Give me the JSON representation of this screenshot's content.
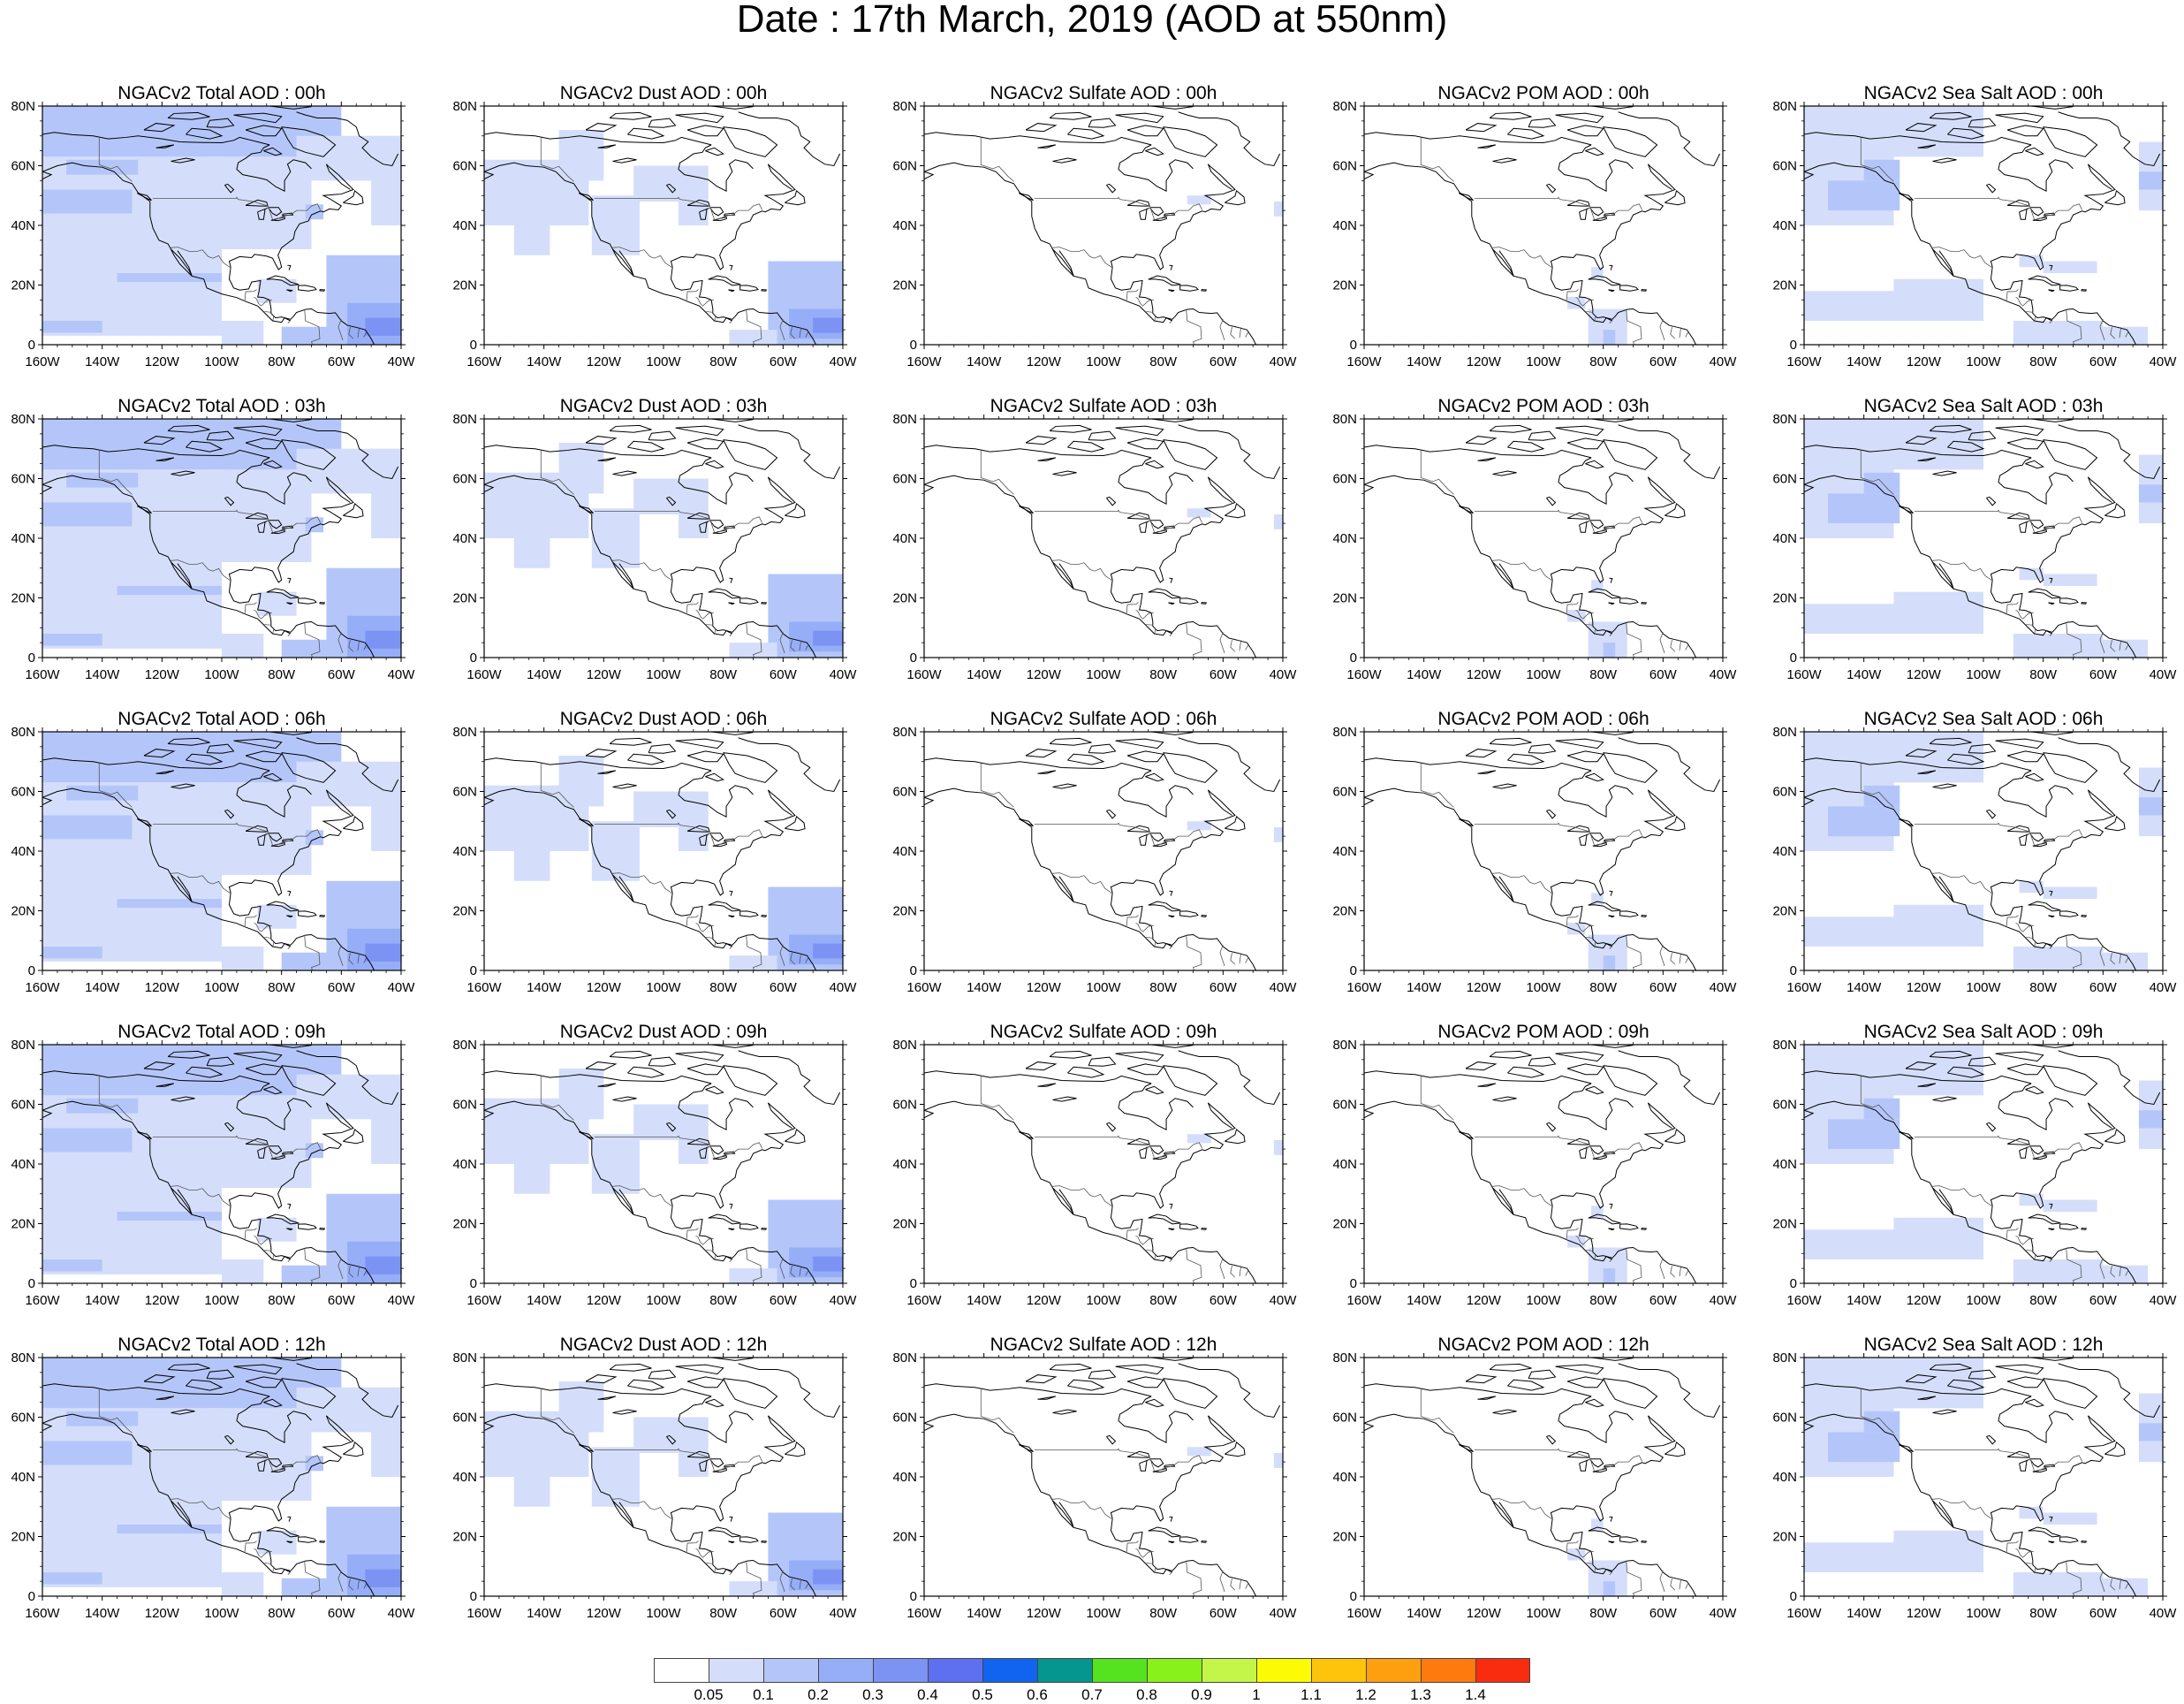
{
  "title": "Date : 17th March, 2019 (AOD at 550nm)",
  "lat_labels": [
    "80N",
    "60N",
    "40N",
    "20N",
    "0"
  ],
  "lon_labels": [
    "160W",
    "140W",
    "120W",
    "100W",
    "80W",
    "60W",
    "40W"
  ],
  "panels": [
    {
      "title": "NGACv2 Total AOD : 00h",
      "species": "total"
    },
    {
      "title": "NGACv2 Dust AOD : 00h",
      "species": "dust"
    },
    {
      "title": "NGACv2 Sulfate AOD : 00h",
      "species": "sulfate"
    },
    {
      "title": "NGACv2 POM AOD : 00h",
      "species": "pom"
    },
    {
      "title": "NGACv2 Sea Salt AOD : 00h",
      "species": "seasalt"
    },
    {
      "title": "NGACv2 Total AOD : 03h",
      "species": "total"
    },
    {
      "title": "NGACv2 Dust AOD : 03h",
      "species": "dust"
    },
    {
      "title": "NGACv2 Sulfate AOD : 03h",
      "species": "sulfate"
    },
    {
      "title": "NGACv2 POM AOD : 03h",
      "species": "pom"
    },
    {
      "title": "NGACv2 Sea Salt AOD : 03h",
      "species": "seasalt"
    },
    {
      "title": "NGACv2 Total AOD : 06h",
      "species": "total"
    },
    {
      "title": "NGACv2 Dust AOD : 06h",
      "species": "dust"
    },
    {
      "title": "NGACv2 Sulfate AOD : 06h",
      "species": "sulfate"
    },
    {
      "title": "NGACv2 POM AOD : 06h",
      "species": "pom"
    },
    {
      "title": "NGACv2 Sea Salt AOD : 06h",
      "species": "seasalt"
    },
    {
      "title": "NGACv2 Total AOD : 09h",
      "species": "total"
    },
    {
      "title": "NGACv2 Dust AOD : 09h",
      "species": "dust"
    },
    {
      "title": "NGACv2 Sulfate AOD : 09h",
      "species": "sulfate"
    },
    {
      "title": "NGACv2 POM AOD : 09h",
      "species": "pom"
    },
    {
      "title": "NGACv2 Sea Salt  AOD : 09h",
      "species": "seasalt"
    },
    {
      "title": "NGACv2 Total AOD  : 12h",
      "species": "total"
    },
    {
      "title": "NGACv2 Dust AOD : 12h",
      "species": "dust"
    },
    {
      "title": "NGACv2 Sulfate AOD : 12h",
      "species": "sulfate"
    },
    {
      "title": "NGACv2 POM  AOD : 12h",
      "species": "pom"
    },
    {
      "title": "NGACv2 Sea Salt  AOD : 12h",
      "species": "seasalt"
    }
  ],
  "colorbar": {
    "colors": [
      "#ffffff",
      "#d4defb",
      "#b4c6f9",
      "#96aef7",
      "#7c93f4",
      "#5e6ff0",
      "#1064f0",
      "#05968f",
      "#55e31f",
      "#88f01a",
      "#c4f649",
      "#fcfa05",
      "#fec40c",
      "#fe9f10",
      "#fe7a0f",
      "#fa2c10"
    ],
    "ticks": [
      "0.05",
      "0.1",
      "0.2",
      "0.3",
      "0.4",
      "0.5",
      "0.6",
      "0.7",
      "0.8",
      "0.9",
      "1",
      "1.1",
      "1.2",
      "1.3",
      "1.4"
    ]
  }
}
